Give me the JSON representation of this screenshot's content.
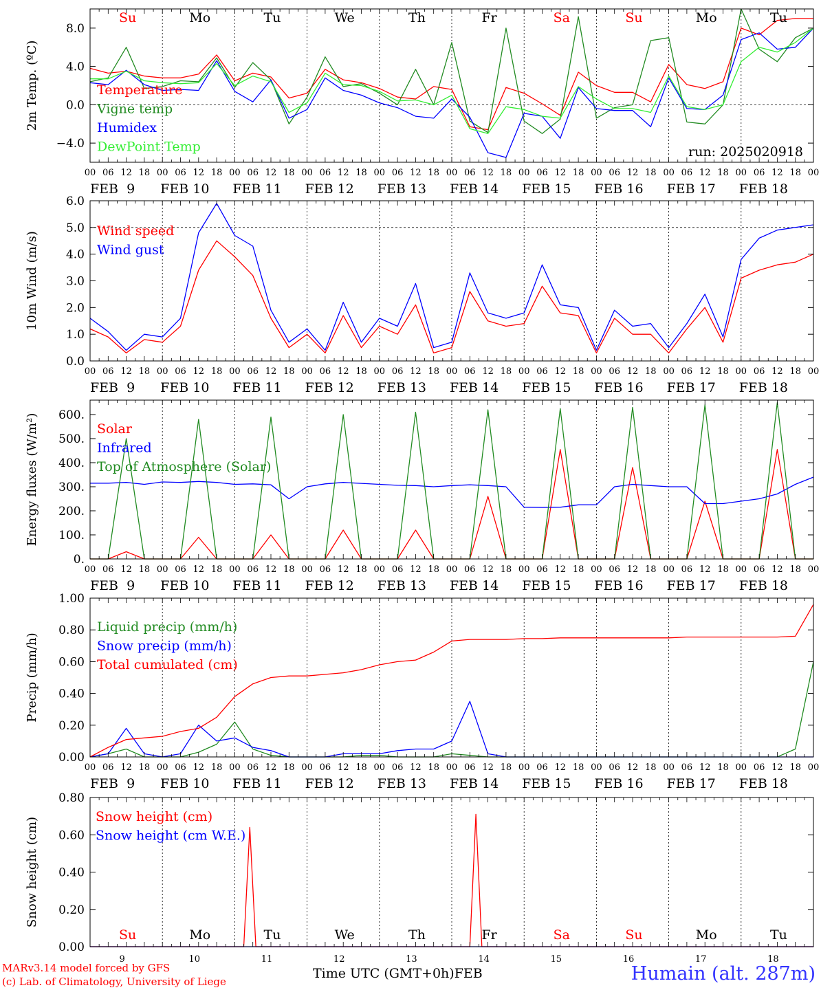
{
  "colors": {
    "red": "#ff0000",
    "green": "#228b22",
    "blue": "#0000ff",
    "lightgreen": "#33ee33",
    "weekend": "#ff0000",
    "weekday": "#000000"
  },
  "chart_data": [
    {
      "type": "line",
      "ylabel": "2m Temp. (ºC)",
      "ylim": [
        -6,
        10
      ],
      "yticks": [
        8.0,
        4.0,
        0.0,
        -4.0
      ],
      "ytick_labels": [
        "8.0",
        "4.0",
        "0.0",
        "−4.0"
      ],
      "x_hours": [
        0,
        6,
        12,
        18,
        24,
        30,
        36,
        42,
        48,
        54,
        60,
        66,
        72,
        78,
        84,
        90,
        96,
        102,
        108,
        114,
        120,
        126,
        132,
        138,
        144,
        150,
        156,
        162,
        168,
        174,
        180,
        186,
        192,
        198,
        204,
        210,
        216,
        222,
        228,
        234,
        240
      ],
      "annotation": "run: 2025020918",
      "series": [
        {
          "name": "Temperature",
          "color": "red",
          "values": [
            3.8,
            3.3,
            3.5,
            3.0,
            2.8,
            2.8,
            3.2,
            5.2,
            2.5,
            3.3,
            2.9,
            0.7,
            1.2,
            3.7,
            2.6,
            2.3,
            1.7,
            0.8,
            0.6,
            1.9,
            1.6,
            -2.3,
            -2.6,
            1.8,
            1.2,
            0.1,
            -1.1,
            3.4,
            2.0,
            1.3,
            1.3,
            0.3,
            4.2,
            2.1,
            1.7,
            2.4,
            8.0,
            7.3,
            8.8,
            9.0,
            9.0
          ]
        },
        {
          "name": "Vigne temp",
          "color": "green",
          "values": [
            2.4,
            2.8,
            6.0,
            1.7,
            1.9,
            2.5,
            2.4,
            4.9,
            1.8,
            4.4,
            2.6,
            -2.0,
            0.8,
            5.0,
            1.9,
            2.2,
            1.2,
            0.0,
            3.7,
            0.0,
            6.5,
            -1.7,
            -2.9,
            8.0,
            -1.7,
            -3.0,
            -1.5,
            9.2,
            -1.4,
            -0.3,
            0.0,
            6.7,
            7.0,
            -1.8,
            -2.0,
            0.0,
            10.0,
            5.8,
            4.5,
            7.0,
            8.0
          ]
        },
        {
          "name": "Humidex",
          "color": "blue",
          "values": [
            2.3,
            2.1,
            3.6,
            2.1,
            1.5,
            1.6,
            1.5,
            4.6,
            1.4,
            0.3,
            2.6,
            -1.4,
            -0.5,
            2.8,
            1.5,
            1.0,
            0.2,
            -0.3,
            -1.2,
            -1.4,
            0.6,
            -1.3,
            -5.0,
            -5.5,
            -0.9,
            -1.2,
            -3.5,
            1.8,
            -0.4,
            -0.6,
            -0.6,
            -2.3,
            2.8,
            -0.4,
            -0.5,
            1.0,
            6.8,
            7.5,
            5.8,
            6.0,
            8.0
          ]
        },
        {
          "name": "DewPoint Temp",
          "color": "lightgreen",
          "values": [
            2.7,
            2.7,
            3.5,
            2.5,
            2.3,
            2.2,
            2.3,
            4.3,
            2.0,
            3.0,
            2.4,
            -0.8,
            0.2,
            3.3,
            2.1,
            2.0,
            1.4,
            0.4,
            0.5,
            0.0,
            1.0,
            -2.5,
            -3.0,
            -0.2,
            -0.5,
            -1.2,
            -1.4,
            1.9,
            0.6,
            -0.4,
            -0.4,
            -0.8,
            3.0,
            -0.2,
            -0.5,
            0.0,
            4.5,
            6.0,
            5.5,
            6.5,
            8.0
          ]
        }
      ]
    },
    {
      "type": "line",
      "ylabel": "10m Wind (m/s)",
      "ylim": [
        0,
        6
      ],
      "yticks": [
        6.0,
        5.0,
        4.0,
        3.0,
        2.0,
        1.0,
        0.0
      ],
      "ytick_labels": [
        "6.0",
        "5.0",
        "4.0",
        "3.0",
        "2.0",
        "1.0",
        "0.0"
      ],
      "x_hours": [
        0,
        6,
        12,
        18,
        24,
        30,
        36,
        42,
        48,
        54,
        60,
        66,
        72,
        78,
        84,
        90,
        96,
        102,
        108,
        114,
        120,
        126,
        132,
        138,
        144,
        150,
        156,
        162,
        168,
        174,
        180,
        186,
        192,
        198,
        204,
        210,
        216,
        222,
        228,
        234,
        240
      ],
      "series": [
        {
          "name": "Wind speed",
          "color": "red",
          "values": [
            1.2,
            0.9,
            0.3,
            0.8,
            0.7,
            1.3,
            3.4,
            4.5,
            3.9,
            3.2,
            1.6,
            0.5,
            1.0,
            0.3,
            1.7,
            0.5,
            1.3,
            1.0,
            2.1,
            0.3,
            0.5,
            2.6,
            1.5,
            1.3,
            1.4,
            2.8,
            1.8,
            1.7,
            0.3,
            1.6,
            1.0,
            1.0,
            0.3,
            1.2,
            2.0,
            0.7,
            3.1,
            3.4,
            3.6,
            3.7,
            4.0
          ]
        },
        {
          "name": "Wind gust",
          "color": "blue",
          "values": [
            1.6,
            1.1,
            0.4,
            1.0,
            0.9,
            1.6,
            4.8,
            5.9,
            4.7,
            4.3,
            1.9,
            0.7,
            1.2,
            0.4,
            2.2,
            0.7,
            1.6,
            1.3,
            2.9,
            0.5,
            0.7,
            3.3,
            1.8,
            1.6,
            1.8,
            3.6,
            2.1,
            2.0,
            0.4,
            1.9,
            1.3,
            1.4,
            0.5,
            1.4,
            2.5,
            0.9,
            3.8,
            4.6,
            4.9,
            5.0,
            5.1
          ]
        }
      ]
    },
    {
      "type": "line",
      "ylabel": "Energy fluxes (W/m²)",
      "ylim": [
        0,
        660
      ],
      "yticks": [
        600,
        500,
        400,
        300,
        200,
        100,
        0
      ],
      "ytick_labels": [
        "600.",
        "500.",
        "400.",
        "300.",
        "200.",
        "100.",
        "0."
      ],
      "x_hours": [
        0,
        6,
        12,
        18,
        24,
        30,
        36,
        42,
        48,
        54,
        60,
        66,
        72,
        78,
        84,
        90,
        96,
        102,
        108,
        114,
        120,
        126,
        132,
        138,
        144,
        150,
        156,
        162,
        168,
        174,
        180,
        186,
        192,
        198,
        204,
        210,
        216,
        222,
        228,
        234,
        240
      ],
      "series": [
        {
          "name": "Solar",
          "color": "red",
          "values": [
            0,
            0,
            30,
            0,
            0,
            0,
            90,
            0,
            0,
            0,
            100,
            0,
            0,
            0,
            120,
            0,
            0,
            0,
            120,
            0,
            0,
            0,
            260,
            0,
            0,
            0,
            455,
            0,
            0,
            0,
            380,
            0,
            0,
            0,
            240,
            0,
            0,
            0,
            455,
            0,
            0
          ]
        },
        {
          "name": "Infrared",
          "color": "blue",
          "values": [
            315,
            315,
            318,
            310,
            320,
            318,
            322,
            318,
            310,
            312,
            308,
            250,
            300,
            312,
            318,
            314,
            310,
            306,
            305,
            300,
            305,
            308,
            305,
            300,
            215,
            214,
            215,
            225,
            225,
            300,
            310,
            305,
            300,
            300,
            230,
            230,
            240,
            250,
            270,
            310,
            340
          ]
        },
        {
          "name": "Top of Atmosphere (Solar)",
          "color": "green",
          "values": [
            0,
            0,
            500,
            0,
            0,
            0,
            580,
            0,
            0,
            0,
            590,
            0,
            0,
            0,
            600,
            0,
            0,
            0,
            610,
            0,
            0,
            0,
            620,
            0,
            0,
            0,
            625,
            0,
            0,
            0,
            630,
            0,
            0,
            0,
            640,
            0,
            0,
            0,
            650,
            0,
            0
          ]
        }
      ]
    },
    {
      "type": "line",
      "ylabel": "Precip (mm/h)",
      "ylim": [
        0,
        1.0
      ],
      "yticks": [
        1.0,
        0.8,
        0.6,
        0.4,
        0.2,
        0.0
      ],
      "ytick_labels": [
        "1.00",
        "0.80",
        "0.60",
        "0.40",
        "0.20",
        "0.00"
      ],
      "x_hours": [
        0,
        6,
        12,
        18,
        24,
        30,
        36,
        42,
        48,
        54,
        60,
        66,
        72,
        78,
        84,
        90,
        96,
        102,
        108,
        114,
        120,
        126,
        132,
        138,
        144,
        150,
        156,
        162,
        168,
        174,
        180,
        186,
        192,
        198,
        204,
        210,
        216,
        222,
        228,
        234,
        240
      ],
      "series": [
        {
          "name": "Liquid precip (mm/h)",
          "color": "green",
          "values": [
            0,
            0.02,
            0.05,
            0,
            0,
            0,
            0.03,
            0.08,
            0.22,
            0.05,
            0.01,
            0,
            0,
            0,
            0,
            0.01,
            0.01,
            0,
            0,
            0,
            0.02,
            0.01,
            0,
            0,
            0,
            0,
            0,
            0,
            0,
            0,
            0,
            0,
            0,
            0,
            0,
            0,
            0,
            0,
            0,
            0.05,
            0.6
          ]
        },
        {
          "name": "Snow precip (mm/h)",
          "color": "blue",
          "values": [
            0,
            0.02,
            0.18,
            0.02,
            0,
            0.02,
            0.2,
            0.1,
            0.12,
            0.06,
            0.04,
            0,
            0,
            0,
            0.02,
            0.02,
            0.02,
            0.04,
            0.05,
            0.05,
            0.1,
            0.35,
            0.02,
            0,
            0,
            0,
            0,
            0,
            0,
            0,
            0,
            0,
            0,
            0,
            0,
            0,
            0,
            0,
            0,
            0,
            0
          ]
        },
        {
          "name": "Total cumulated (cm)",
          "color": "red",
          "values": [
            0,
            0.06,
            0.11,
            0.12,
            0.13,
            0.16,
            0.18,
            0.25,
            0.38,
            0.46,
            0.5,
            0.51,
            0.51,
            0.52,
            0.53,
            0.55,
            0.58,
            0.6,
            0.61,
            0.66,
            0.73,
            0.74,
            0.74,
            0.74,
            0.745,
            0.745,
            0.75,
            0.75,
            0.75,
            0.75,
            0.75,
            0.75,
            0.75,
            0.755,
            0.755,
            0.755,
            0.755,
            0.755,
            0.755,
            0.76,
            0.96
          ]
        }
      ]
    },
    {
      "type": "line",
      "ylabel": "Snow height (cm)",
      "ylim": [
        0,
        0.8
      ],
      "yticks": [
        0.8,
        0.6,
        0.4,
        0.2,
        0.0
      ],
      "ytick_labels": [
        "0.80",
        "0.60",
        "0.40",
        "0.20",
        "0.00"
      ],
      "x_hours": [
        0,
        51,
        53,
        55,
        126,
        128,
        130,
        240
      ],
      "series": [
        {
          "name": "Snow height (cm)",
          "color": "red",
          "values": [
            0,
            0,
            0.64,
            0,
            0,
            0.71,
            0,
            0
          ]
        },
        {
          "name": "Snow height (cm W.E.)",
          "color": "blue",
          "values": [
            0,
            0,
            0,
            0,
            0,
            0,
            0,
            0
          ]
        }
      ]
    }
  ],
  "x_axis": {
    "hour_ticks": [
      "00",
      "06",
      "12",
      "18"
    ],
    "final_tick": "00",
    "date_labels": [
      "FEB  9",
      "FEB 10",
      "FEB 11",
      "FEB 12",
      "FEB 13",
      "FEB 14",
      "FEB 15",
      "FEB 16",
      "FEB 17",
      "FEB 18"
    ],
    "day_numbers": [
      "9",
      "10",
      "11",
      "12",
      "13",
      "14",
      "15",
      "16",
      "17",
      "18"
    ],
    "title": "Time UTC (GMT+0h)",
    "month": "FEB"
  },
  "weekdays": [
    {
      "label": "Su",
      "weekend": true
    },
    {
      "label": "Mo",
      "weekend": false
    },
    {
      "label": "Tu",
      "weekend": false
    },
    {
      "label": "We",
      "weekend": false
    },
    {
      "label": "Th",
      "weekend": false
    },
    {
      "label": "Fr",
      "weekend": false
    },
    {
      "label": "Sa",
      "weekend": true
    },
    {
      "label": "Su",
      "weekend": true
    },
    {
      "label": "Mo",
      "weekend": false
    },
    {
      "label": "Tu",
      "weekend": false
    }
  ],
  "credits": {
    "line1": "MARv3.14 model forced by GFS",
    "line2": "(c) Lab. of Climatology, University of Liege"
  },
  "station": "Humain (alt. 287m)"
}
